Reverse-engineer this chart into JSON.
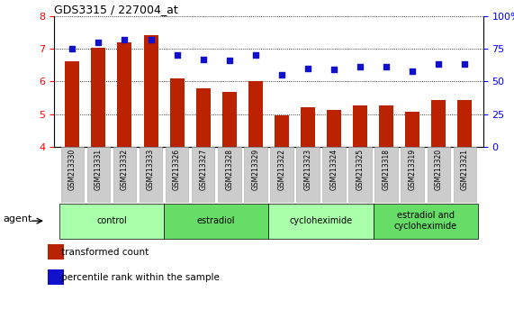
{
  "title": "GDS3315 / 227004_at",
  "samples": [
    "GSM213330",
    "GSM213331",
    "GSM213332",
    "GSM213333",
    "GSM213326",
    "GSM213327",
    "GSM213328",
    "GSM213329",
    "GSM213322",
    "GSM213323",
    "GSM213324",
    "GSM213325",
    "GSM213318",
    "GSM213319",
    "GSM213320",
    "GSM213321"
  ],
  "bar_values": [
    6.62,
    7.02,
    7.18,
    7.42,
    6.08,
    5.78,
    5.68,
    6.0,
    4.95,
    5.22,
    5.12,
    5.25,
    5.25,
    5.08,
    5.42,
    5.42
  ],
  "scatter_values": [
    75,
    80,
    82,
    82,
    70,
    67,
    66,
    70,
    55,
    60,
    59,
    61,
    61,
    58,
    63,
    63
  ],
  "bar_color": "#bb2200",
  "scatter_color": "#1111cc",
  "ylim_left": [
    4,
    8
  ],
  "ylim_right": [
    0,
    100
  ],
  "yticks_left": [
    4,
    5,
    6,
    7,
    8
  ],
  "yticks_right": [
    0,
    25,
    50,
    75,
    100
  ],
  "ytick_labels_right": [
    "0",
    "25",
    "50",
    "75",
    "100%"
  ],
  "groups": [
    {
      "label": "control",
      "start": 0,
      "end": 3
    },
    {
      "label": "estradiol",
      "start": 4,
      "end": 7
    },
    {
      "label": "cycloheximide",
      "start": 8,
      "end": 11
    },
    {
      "label": "estradiol and\ncycloheximide",
      "start": 12,
      "end": 15
    }
  ],
  "group_colors_odd": "#aaffaa",
  "group_colors_even": "#66dd66",
  "agent_label": "agent",
  "legend_bar_label": "transformed count",
  "legend_scatter_label": "percentile rank within the sample",
  "tick_label_bg": "#cccccc",
  "tick_label_border": "#aaaaaa"
}
